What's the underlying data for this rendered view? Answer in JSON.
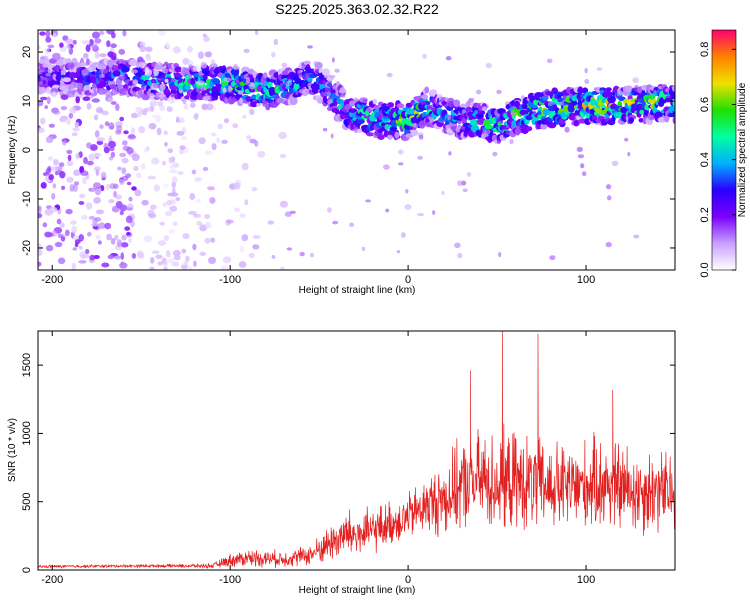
{
  "title": "S225.2025.363.02.32.R22",
  "chart_data": [
    {
      "type": "heatmap",
      "xlabel": "Height of straight line (km)",
      "ylabel": "Frequency (Hz)",
      "xlim": [
        -208,
        150
      ],
      "ylim": [
        -24.5,
        24.5
      ],
      "xticks": [
        -200,
        -100,
        0,
        100
      ],
      "yticks": [
        -20,
        -10,
        0,
        10,
        20
      ],
      "colorbar": {
        "label": "Normalized spectral amplitude",
        "range": [
          0.0,
          0.87
        ],
        "ticks": [
          0.0,
          0.2,
          0.4,
          0.6,
          0.8
        ],
        "colors": [
          "#ffffff",
          "#c8a0ff",
          "#7a00ff",
          "#2a00ff",
          "#00b0ff",
          "#00ffa0",
          "#20e000",
          "#f0e000",
          "#ff8000",
          "#ff0070"
        ]
      },
      "ridge": {
        "x": [
          -200,
          -180,
          -160,
          -140,
          -120,
          -100,
          -80,
          -65,
          -55,
          -45,
          -35,
          -25,
          -15,
          -5,
          0,
          10,
          20,
          30,
          40,
          50,
          60,
          80,
          100,
          120,
          140,
          150
        ],
        "freq": [
          15,
          14.5,
          15,
          14,
          13.5,
          13.5,
          12,
          13,
          15,
          12,
          8,
          7,
          6,
          6,
          6,
          9,
          7,
          6,
          6,
          5,
          7,
          8.5,
          9,
          9,
          9.5,
          9.5
        ],
        "amplitude": [
          0.25,
          0.3,
          0.35,
          0.4,
          0.45,
          0.5,
          0.45,
          0.4,
          0.35,
          0.35,
          0.4,
          0.45,
          0.5,
          0.55,
          0.6,
          0.45,
          0.35,
          0.4,
          0.45,
          0.5,
          0.55,
          0.6,
          0.62,
          0.6,
          0.55,
          0.5
        ]
      },
      "scatter_region": {
        "x": [
          -208,
          -150
        ],
        "freq": [
          -24.5,
          24.5
        ],
        "amplitude_max": 0.2
      }
    },
    {
      "type": "line",
      "xlabel": "Height of straight line (km)",
      "ylabel": "SNR (10 * v/v)",
      "xlim": [
        -208,
        150
      ],
      "ylim": [
        0,
        1750
      ],
      "xticks": [
        -200,
        -100,
        0,
        100
      ],
      "yticks": [
        0,
        500,
        1000,
        1500
      ],
      "color": "#e32020",
      "envelope": {
        "x": [
          -208,
          -150,
          -110,
          -100,
          -90,
          -70,
          -55,
          -45,
          -35,
          -25,
          -10,
          0,
          10,
          20,
          30,
          40,
          50,
          60,
          70,
          80,
          90,
          100,
          110,
          120,
          130,
          140,
          150
        ],
        "mean": [
          25,
          30,
          30,
          70,
          90,
          80,
          110,
          190,
          260,
          260,
          340,
          390,
          470,
          520,
          620,
          660,
          640,
          650,
          620,
          610,
          600,
          620,
          640,
          600,
          580,
          580,
          560
        ],
        "spread": [
          10,
          10,
          15,
          45,
          60,
          55,
          70,
          120,
          170,
          160,
          150,
          160,
          190,
          260,
          300,
          330,
          340,
          330,
          320,
          310,
          300,
          300,
          320,
          310,
          300,
          290,
          280
        ]
      },
      "spikes": [
        {
          "x": 53,
          "y": 1750
        },
        {
          "x": 73,
          "y": 1730
        },
        {
          "x": 35,
          "y": 1460
        },
        {
          "x": 115,
          "y": 1320
        }
      ]
    }
  ]
}
